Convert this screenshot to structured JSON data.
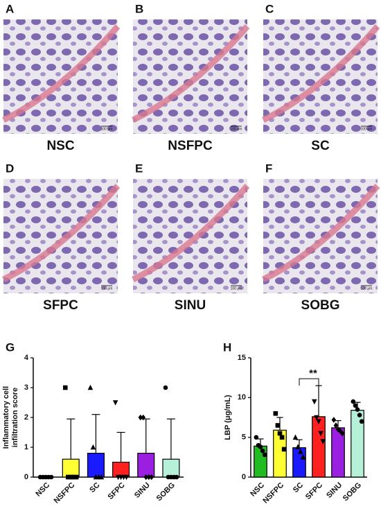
{
  "panels": [
    {
      "letter": "A",
      "caption": "NSC",
      "scale": "100 μm"
    },
    {
      "letter": "B",
      "caption": "NSFPC",
      "scale": "100 μm"
    },
    {
      "letter": "C",
      "caption": "SC",
      "scale": "100 μm"
    },
    {
      "letter": "D",
      "caption": "SFPC",
      "scale": "100 μm"
    },
    {
      "letter": "E",
      "caption": "SINU",
      "scale": "100 μm"
    },
    {
      "letter": "F",
      "caption": "SOBG",
      "scale": "100 μm"
    }
  ],
  "chart_data": [
    {
      "type": "bar",
      "panel": "G",
      "ylabel": [
        "Inflammatory cell",
        "infiltration score"
      ],
      "categories": [
        "NSC",
        "NSFPC",
        "SC",
        "SFPC",
        "SINU",
        "SOBG"
      ],
      "values": [
        0,
        0.6,
        0.8,
        0.5,
        0.8,
        0.6
      ],
      "errors": [
        0,
        1.35,
        1.3,
        1.0,
        1.15,
        1.35
      ],
      "points": [
        [
          0,
          0,
          0,
          0,
          0
        ],
        [
          3,
          0,
          0,
          0,
          0
        ],
        [
          3,
          1,
          0,
          0,
          0
        ],
        [
          2.5,
          0,
          0,
          0,
          0
        ],
        [
          2,
          2,
          0,
          0,
          0
        ],
        [
          3,
          0,
          0,
          0,
          0
        ]
      ],
      "colors": [
        "#9e9e9e",
        "#ffff33",
        "#1a1aff",
        "#ff2020",
        "#9a1fe0",
        "#b5f0d8"
      ],
      "markers": [
        "circle",
        "square",
        "triangle",
        "triangle-down",
        "diamond",
        "circle"
      ],
      "ylim": [
        0,
        4
      ],
      "yticks": [
        0,
        1,
        2,
        3,
        4
      ]
    },
    {
      "type": "bar",
      "panel": "H",
      "ylabel": [
        "LBP (μg/mL)"
      ],
      "categories": [
        "NSC",
        "NSFPC",
        "SC",
        "SFPC",
        "SINU",
        "SOBG"
      ],
      "values": [
        3.9,
        5.9,
        3.7,
        7.6,
        6.2,
        8.4
      ],
      "errors": [
        0.9,
        1.6,
        1.0,
        3.9,
        0.9,
        1.0
      ],
      "points": [
        [
          5.0,
          4.0,
          3.8,
          3.3,
          2.8
        ],
        [
          8.0,
          6.5,
          5.5,
          5.0,
          3.5
        ],
        [
          5.0,
          3.8,
          3.2,
          2.5
        ],
        [
          9.5,
          7.5,
          7.0,
          5.5,
          4.5
        ],
        [
          7.2,
          6.5,
          6.0,
          5.8,
          5.5
        ],
        [
          9.5,
          9.0,
          8.5,
          7.8,
          7.0
        ]
      ],
      "colors": [
        "#22bb22",
        "#ffff33",
        "#1a1aff",
        "#ff2020",
        "#9a1fe0",
        "#b5f0d8"
      ],
      "markers": [
        "circle",
        "square",
        "triangle",
        "triangle-down",
        "diamond",
        "circle"
      ],
      "ylim": [
        0,
        15
      ],
      "yticks": [
        0,
        5,
        10,
        15
      ],
      "annotations": [
        {
          "text": "**",
          "pair": [
            2,
            3
          ]
        }
      ]
    }
  ]
}
